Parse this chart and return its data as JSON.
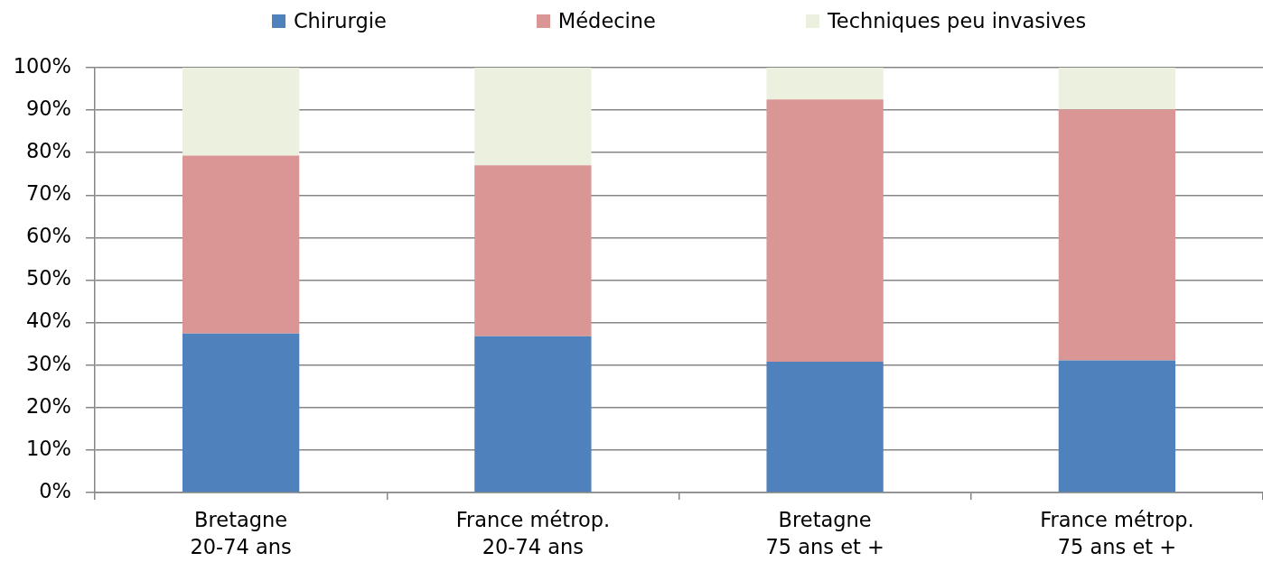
{
  "chart_data": {
    "type": "bar",
    "stacked": true,
    "categories": [
      "Bretagne\n20-74 ans",
      "France métrop.\n20-74 ans",
      "Bretagne\n75 ans et +",
      "France métrop.\n75 ans et +"
    ],
    "series": [
      {
        "name": "Chirurgie",
        "color": "#4f81bd",
        "values": [
          37.4,
          36.8,
          30.8,
          31.1
        ]
      },
      {
        "name": "Médecine",
        "color": "#d99694",
        "values": [
          41.9,
          40.2,
          61.7,
          59.1
        ]
      },
      {
        "name": "Techniques peu invasives",
        "color": "#ebf1de",
        "values": [
          20.7,
          23.0,
          7.5,
          9.8
        ]
      }
    ],
    "ylim": [
      0,
      100
    ],
    "yticks": [
      {
        "value": 0,
        "label": "0%"
      },
      {
        "value": 10,
        "label": "10%"
      },
      {
        "value": 20,
        "label": "20%"
      },
      {
        "value": 30,
        "label": "30%"
      },
      {
        "value": 40,
        "label": "40%"
      },
      {
        "value": 50,
        "label": "50%"
      },
      {
        "value": 60,
        "label": "60%"
      },
      {
        "value": 70,
        "label": "70%"
      },
      {
        "value": 80,
        "label": "80%"
      },
      {
        "value": 90,
        "label": "90%"
      },
      {
        "value": 100,
        "label": "100%"
      }
    ],
    "grid": "y",
    "legend": "top"
  }
}
